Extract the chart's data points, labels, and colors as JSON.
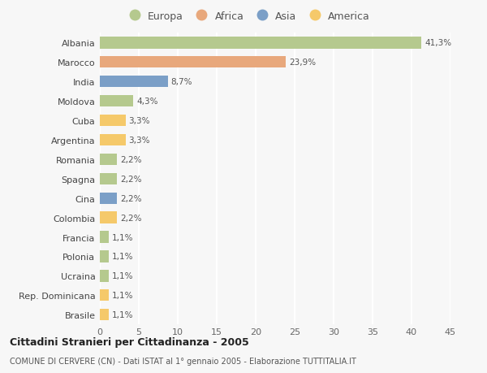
{
  "countries": [
    "Albania",
    "Marocco",
    "India",
    "Moldova",
    "Cuba",
    "Argentina",
    "Romania",
    "Spagna",
    "Cina",
    "Colombia",
    "Francia",
    "Polonia",
    "Ucraina",
    "Rep. Dominicana",
    "Brasile"
  ],
  "values": [
    41.3,
    23.9,
    8.7,
    4.3,
    3.3,
    3.3,
    2.2,
    2.2,
    2.2,
    2.2,
    1.1,
    1.1,
    1.1,
    1.1,
    1.1
  ],
  "labels": [
    "41,3%",
    "23,9%",
    "8,7%",
    "4,3%",
    "3,3%",
    "3,3%",
    "2,2%",
    "2,2%",
    "2,2%",
    "2,2%",
    "1,1%",
    "1,1%",
    "1,1%",
    "1,1%",
    "1,1%"
  ],
  "continents": [
    "Europa",
    "Africa",
    "Asia",
    "Europa",
    "America",
    "America",
    "Europa",
    "Europa",
    "Asia",
    "America",
    "Europa",
    "Europa",
    "Europa",
    "America",
    "America"
  ],
  "colors": {
    "Europa": "#b5c98e",
    "Africa": "#e8a87c",
    "Asia": "#7b9fc7",
    "America": "#f5c96a"
  },
  "legend_order": [
    "Europa",
    "Africa",
    "Asia",
    "America"
  ],
  "title": "Cittadini Stranieri per Cittadinanza - 2005",
  "subtitle": "COMUNE DI CERVERE (CN) - Dati ISTAT al 1° gennaio 2005 - Elaborazione TUTTITALIA.IT",
  "xlim": [
    0,
    45
  ],
  "xticks": [
    0,
    5,
    10,
    15,
    20,
    25,
    30,
    35,
    40,
    45
  ],
  "background_color": "#f7f7f7",
  "grid_color": "#ffffff",
  "bar_height": 0.6
}
